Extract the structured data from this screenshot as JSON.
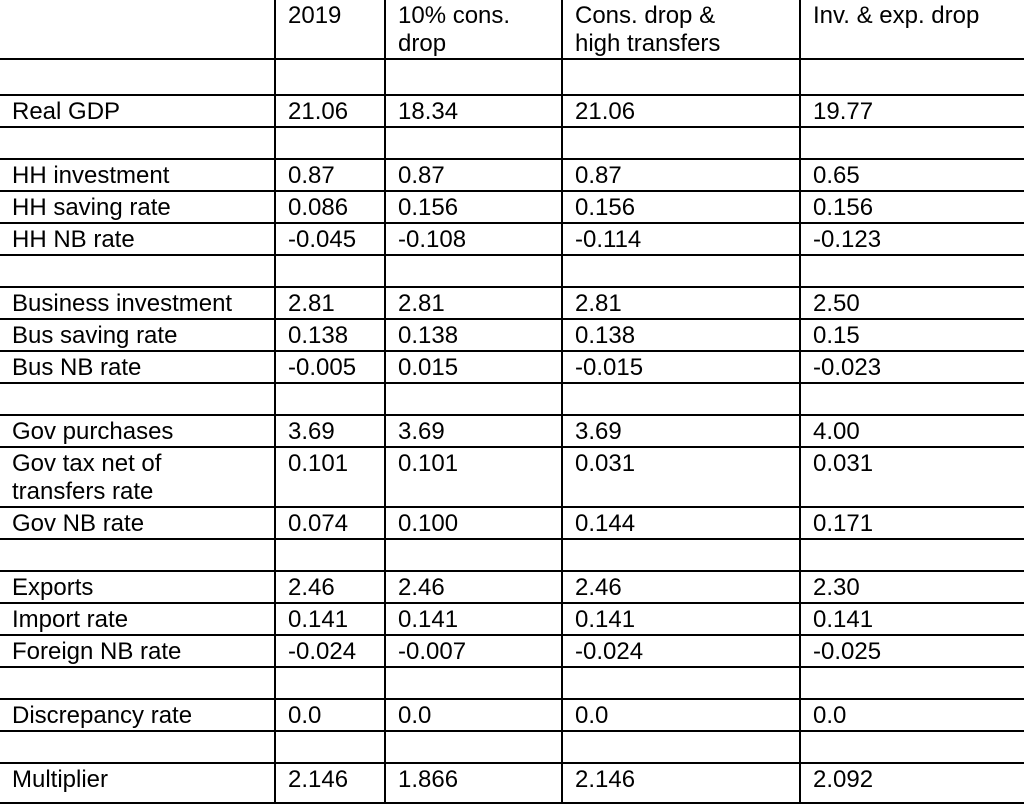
{
  "table": {
    "columns": [
      "",
      "2019",
      "10% cons.\ndrop",
      "Cons. drop &\nhigh transfers",
      "Inv. & exp. drop"
    ],
    "rows": [
      {
        "label": "",
        "values": [
          "",
          "",
          "",
          ""
        ]
      },
      {
        "label": "Real GDP",
        "values": [
          "21.06",
          "18.34",
          "21.06",
          "19.77"
        ]
      },
      {
        "label": "",
        "values": [
          "",
          "",
          "",
          ""
        ]
      },
      {
        "label": "HH investment",
        "values": [
          "0.87",
          "0.87",
          "0.87",
          "0.65"
        ]
      },
      {
        "label": "HH saving rate",
        "values": [
          "0.086",
          "0.156",
          "0.156",
          "0.156"
        ]
      },
      {
        "label": "HH NB rate",
        "values": [
          "-0.045",
          "-0.108",
          "-0.114",
          "-0.123"
        ]
      },
      {
        "label": "",
        "values": [
          "",
          "",
          "",
          ""
        ]
      },
      {
        "label": "Business investment",
        "values": [
          "2.81",
          "2.81",
          "2.81",
          "2.50"
        ]
      },
      {
        "label": "Bus saving rate",
        "values": [
          "0.138",
          "0.138",
          "0.138",
          "0.15"
        ]
      },
      {
        "label": "Bus NB rate",
        "values": [
          "-0.005",
          "0.015",
          "-0.015",
          "-0.023"
        ]
      },
      {
        "label": "",
        "values": [
          "",
          "",
          "",
          ""
        ]
      },
      {
        "label": "Gov purchases",
        "values": [
          "3.69",
          "3.69",
          "3.69",
          "4.00"
        ]
      },
      {
        "label": "Gov tax net of\ntransfers rate",
        "values": [
          "0.101",
          "0.101",
          "0.031",
          "0.031"
        ]
      },
      {
        "label": "Gov NB rate",
        "values": [
          "0.074",
          "0.100",
          "0.144",
          "0.171"
        ]
      },
      {
        "label": "",
        "values": [
          "",
          "",
          "",
          ""
        ]
      },
      {
        "label": "Exports",
        "values": [
          "2.46",
          "2.46",
          "2.46",
          "2.30"
        ]
      },
      {
        "label": "Import rate",
        "values": [
          "0.141",
          "0.141",
          "0.141",
          "0.141"
        ]
      },
      {
        "label": "Foreign NB rate",
        "values": [
          "-0.024",
          "-0.007",
          "-0.024",
          "-0.025"
        ]
      },
      {
        "label": "",
        "values": [
          "",
          "",
          "",
          ""
        ]
      },
      {
        "label": "Discrepancy rate",
        "values": [
          "0.0",
          "0.0",
          "0.0",
          "0.0"
        ]
      },
      {
        "label": "",
        "values": [
          "",
          "",
          "",
          ""
        ]
      },
      {
        "label": "Multiplier",
        "values": [
          "2.146",
          "1.866",
          "2.146",
          "2.092"
        ]
      }
    ]
  }
}
